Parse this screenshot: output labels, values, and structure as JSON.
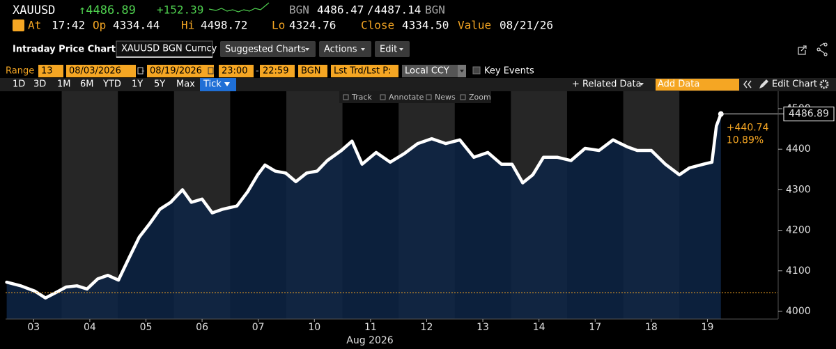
{
  "header": {
    "ticker": "XAUUSD",
    "last": "↑4486.89",
    "change": "+152.39",
    "bid_source": "BGN",
    "bid": "4486.47",
    "bid_ask_separator": "/",
    "ask": "4487.14",
    "ask_source": "BGN",
    "at_label": "At",
    "at": "17:42",
    "open_label": "Op",
    "open": "4334.44",
    "high_label": "Hi",
    "high": "4498.72",
    "low_label": "Lo",
    "low": "4324.76",
    "close_label": "Close",
    "close": "4334.50",
    "value_label": "Value",
    "value_date": "08/21/26"
  },
  "toolbar": {
    "title": "Intraday Price Chart",
    "security": "XAUUSD BGN Curncy",
    "menus": [
      "Suggested Charts",
      "Actions",
      "Edit"
    ]
  },
  "range_bar": {
    "label": "Range",
    "count": "13",
    "start_date": "08/03/2026",
    "separator": "-",
    "end_date": "08/19/2026",
    "start_time": "23:00",
    "end_time": "22:59",
    "source": "BGN",
    "price_type": "Lst Trd/Lst P:",
    "currency": "Local CCY",
    "key_events": "Key Events"
  },
  "period_buttons": [
    "1D",
    "3D",
    "1M",
    "6M",
    "YTD",
    "1Y",
    "5Y",
    "Max",
    "Tick"
  ],
  "selected_period": "Tick",
  "right_tools": {
    "related_data": "+ Related Data",
    "add_data_placeholder": "Add Data",
    "edit_chart": "Edit Chart"
  },
  "chart_toolbar": [
    "Track",
    "Annotate",
    "News",
    "Zoom"
  ],
  "chart_data": {
    "type": "line",
    "x_label": "Aug 2026",
    "x": [
      0.02,
      0.27,
      0.52,
      0.71,
      0.89,
      1.08,
      1.27,
      1.45,
      1.64,
      1.82,
      2.01,
      2.2,
      2.38,
      2.57,
      2.75,
      2.94,
      3.15,
      3.31,
      3.5,
      3.68,
      3.87,
      4.12,
      4.31,
      4.49,
      4.62,
      4.8,
      4.99,
      5.17,
      5.36,
      5.55,
      5.73,
      5.98,
      6.17,
      6.35,
      6.6,
      6.85,
      7.1,
      7.34,
      7.59,
      7.84,
      8.09,
      8.34,
      8.59,
      8.83,
      9.02,
      9.21,
      9.39,
      9.58,
      9.83,
      10.07,
      10.32,
      10.57,
      10.82,
      11.07,
      11.25,
      11.5,
      11.75,
      12.0,
      12.18,
      12.43,
      12.58,
      12.66,
      12.74
    ],
    "series": [
      {
        "color": "#ffffff",
        "values": [
          4072,
          4063,
          4050,
          4033,
          4046,
          4060,
          4063,
          4055,
          4080,
          4089,
          4077,
          4132,
          4183,
          4217,
          4252,
          4269,
          4300,
          4269,
          4277,
          4243,
          4252,
          4260,
          4295,
          4337,
          4361,
          4346,
          4341,
          4320,
          4341,
          4346,
          4372,
          4397,
          4420,
          4363,
          4392,
          4368,
          4389,
          4414,
          4426,
          4414,
          4423,
          4380,
          4392,
          4363,
          4363,
          4317,
          4337,
          4380,
          4380,
          4372,
          4402,
          4397,
          4423,
          4406,
          4397,
          4397,
          4363,
          4337,
          4354,
          4363,
          4368,
          4457,
          4486.89
        ]
      }
    ],
    "area_color": "#0e2646",
    "reference_line": 4046.15,
    "reference_color": "#f5a623",
    "change_label": "+440.74",
    "change_pct_label": "10.89%",
    "xlim": [
      0,
      13.76
    ],
    "xticks": [
      {
        "value": 0.5,
        "label": "03"
      },
      {
        "value": 1.5,
        "label": "04"
      },
      {
        "value": 2.5,
        "label": "05"
      },
      {
        "value": 3.5,
        "label": "06"
      },
      {
        "value": 4.5,
        "label": "07"
      },
      {
        "value": 5.5,
        "label": "10"
      },
      {
        "value": 6.5,
        "label": "11"
      },
      {
        "value": 7.5,
        "label": "12"
      },
      {
        "value": 8.5,
        "label": "13"
      },
      {
        "value": 9.5,
        "label": "14"
      },
      {
        "value": 10.5,
        "label": "17"
      },
      {
        "value": 11.5,
        "label": "18"
      },
      {
        "value": 12.5,
        "label": "19"
      }
    ],
    "ylim": [
      3981,
      4543
    ],
    "yticks": [
      4000,
      4100,
      4200,
      4300,
      4400,
      4500
    ],
    "grid": false
  }
}
